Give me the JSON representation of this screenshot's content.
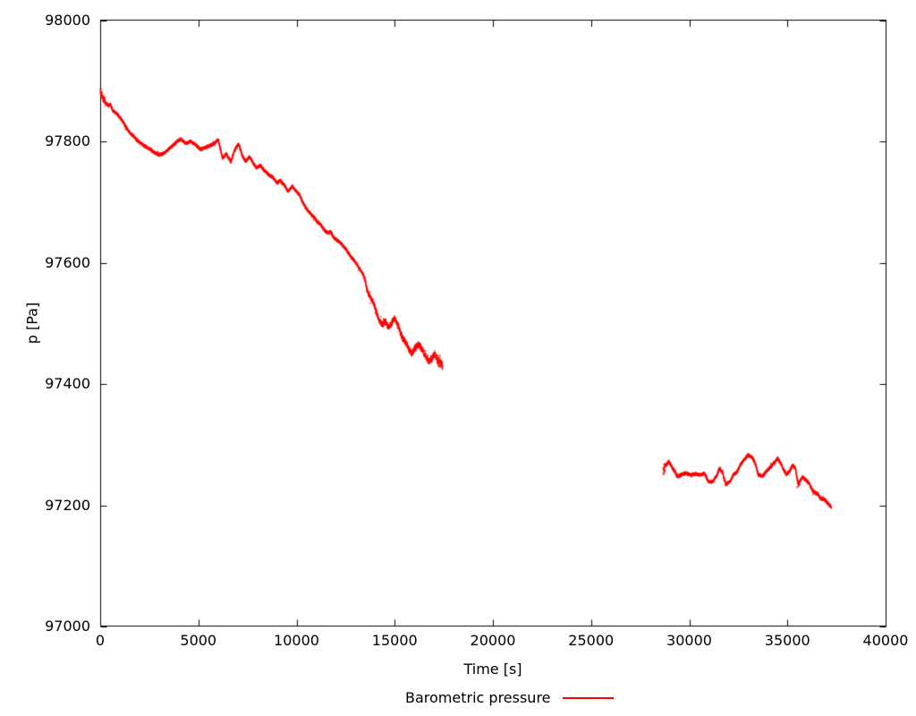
{
  "background": "#ffffff",
  "chart_data": {
    "type": "scatter",
    "title": "",
    "xlabel": "Time [s]",
    "ylabel": "p [Pa]",
    "xlim": [
      0,
      40000
    ],
    "ylim": [
      97000,
      98000
    ],
    "xticks": [
      0,
      5000,
      10000,
      15000,
      20000,
      25000,
      30000,
      35000,
      40000
    ],
    "yticks": [
      97000,
      97200,
      97400,
      97600,
      97800,
      98000
    ],
    "grid": false,
    "legend_position": "bottom-center",
    "frame_color": "#000000",
    "series": [
      {
        "name": "Barometric pressure",
        "color": "#ff0000",
        "style": "dots",
        "segments": [
          {
            "noise_default": 2.8,
            "noise_zones": [
              [
                0,
                260,
                8
              ],
              [
                13400,
                14300,
                4.5
              ],
              [
                14300,
                17150,
                6
              ],
              [
                17150,
                17460,
                10
              ]
            ],
            "points": [
              [
                0,
                97885
              ],
              [
                130,
                97872
              ],
              [
                270,
                97864
              ],
              [
                410,
                97859
              ],
              [
                520,
                97861
              ],
              [
                640,
                97851
              ],
              [
                780,
                97847
              ],
              [
                900,
                97844
              ],
              [
                1050,
                97838
              ],
              [
                1200,
                97830
              ],
              [
                1370,
                97821
              ],
              [
                1550,
                97813
              ],
              [
                1730,
                97808
              ],
              [
                1870,
                97802
              ],
              [
                2000,
                97799
              ],
              [
                2180,
                97794
              ],
              [
                2400,
                97790
              ],
              [
                2600,
                97786
              ],
              [
                2800,
                97781
              ],
              [
                3000,
                97778
              ],
              [
                3200,
                97780
              ],
              [
                3400,
                97785
              ],
              [
                3650,
                97792
              ],
              [
                3900,
                97800
              ],
              [
                4100,
                97804
              ],
              [
                4350,
                97797
              ],
              [
                4600,
                97800
              ],
              [
                4850,
                97795
              ],
              [
                5100,
                97787
              ],
              [
                5350,
                97790
              ],
              [
                5600,
                97793
              ],
              [
                5850,
                97798
              ],
              [
                6010,
                97803
              ],
              [
                6230,
                97772
              ],
              [
                6420,
                97780
              ],
              [
                6650,
                97766
              ],
              [
                6870,
                97788
              ],
              [
                7050,
                97796
              ],
              [
                7240,
                97776
              ],
              [
                7420,
                97767
              ],
              [
                7600,
                97775
              ],
              [
                7780,
                97765
              ],
              [
                7960,
                97756
              ],
              [
                8150,
                97761
              ],
              [
                8330,
                97753
              ],
              [
                8560,
                97746
              ],
              [
                8790,
                97741
              ],
              [
                9010,
                97731
              ],
              [
                9150,
                97736
              ],
              [
                9370,
                97728
              ],
              [
                9560,
                97718
              ],
              [
                9780,
                97726
              ],
              [
                9920,
                97720
              ],
              [
                10150,
                97712
              ],
              [
                10260,
                97703
              ],
              [
                10440,
                97692
              ],
              [
                10600,
                97685
              ],
              [
                10790,
                97678
              ],
              [
                10920,
                97674
              ],
              [
                11060,
                97667
              ],
              [
                11200,
                97664
              ],
              [
                11430,
                97653
              ],
              [
                11600,
                97649
              ],
              [
                11750,
                97651
              ],
              [
                11880,
                97642
              ],
              [
                12060,
                97637
              ],
              [
                12200,
                97634
              ],
              [
                12340,
                97629
              ],
              [
                12520,
                97622
              ],
              [
                12650,
                97615
              ],
              [
                12790,
                97609
              ],
              [
                12970,
                97602
              ],
              [
                13110,
                97595
              ],
              [
                13250,
                97588
              ],
              [
                13400,
                97580
              ],
              [
                13480,
                97573
              ],
              [
                13560,
                97559
              ],
              [
                13650,
                97549
              ],
              [
                13790,
                97541
              ],
              [
                13930,
                97533
              ],
              [
                14060,
                97519
              ],
              [
                14200,
                97505
              ],
              [
                14340,
                97498
              ],
              [
                14520,
                97504
              ],
              [
                14660,
                97494
              ],
              [
                14840,
                97500
              ],
              [
                14980,
                97509
              ],
              [
                15120,
                97501
              ],
              [
                15300,
                97484
              ],
              [
                15430,
                97474
              ],
              [
                15620,
                97466
              ],
              [
                15750,
                97455
              ],
              [
                15890,
                97450
              ],
              [
                16030,
                97459
              ],
              [
                16200,
                97466
              ],
              [
                16340,
                97460
              ],
              [
                16480,
                97452
              ],
              [
                16620,
                97443
              ],
              [
                16750,
                97438
              ],
              [
                16890,
                97442
              ],
              [
                17030,
                97450
              ],
              [
                17160,
                97441
              ],
              [
                17300,
                97435
              ],
              [
                17440,
                97432
              ]
            ]
          },
          {
            "noise_default": 3,
            "noise_zones": [
              [
                28650,
                28770,
                10
              ],
              [
                35480,
                35600,
                6
              ]
            ],
            "points": [
              [
                28670,
                97258
              ],
              [
                28810,
                97266
              ],
              [
                28950,
                97272
              ],
              [
                29080,
                97265
              ],
              [
                29220,
                97258
              ],
              [
                29400,
                97247
              ],
              [
                29630,
                97251
              ],
              [
                29860,
                97253
              ],
              [
                30080,
                97250
              ],
              [
                30310,
                97252
              ],
              [
                30540,
                97250
              ],
              [
                30770,
                97253
              ],
              [
                30950,
                97240
              ],
              [
                31180,
                97238
              ],
              [
                31400,
                97249
              ],
              [
                31540,
                97261
              ],
              [
                31680,
                97255
              ],
              [
                31860,
                97234
              ],
              [
                32090,
                97240
              ],
              [
                32220,
                97249
              ],
              [
                32450,
                97256
              ],
              [
                32590,
                97266
              ],
              [
                32810,
                97276
              ],
              [
                33000,
                97283
              ],
              [
                33220,
                97278
              ],
              [
                33360,
                97270
              ],
              [
                33500,
                97251
              ],
              [
                33730,
                97248
              ],
              [
                33900,
                97255
              ],
              [
                34130,
                97263
              ],
              [
                34270,
                97268
              ],
              [
                34500,
                97277
              ],
              [
                34630,
                97271
              ],
              [
                34820,
                97258
              ],
              [
                34950,
                97251
              ],
              [
                35090,
                97255
              ],
              [
                35270,
                97266
              ],
              [
                35410,
                97260
              ],
              [
                35540,
                97234
              ],
              [
                35770,
                97247
              ],
              [
                35950,
                97241
              ],
              [
                36090,
                97237
              ],
              [
                36310,
                97222
              ],
              [
                36540,
                97219
              ],
              [
                36680,
                97211
              ],
              [
                36910,
                97209
              ],
              [
                37090,
                97202
              ],
              [
                37230,
                97197
              ]
            ]
          }
        ]
      }
    ]
  }
}
